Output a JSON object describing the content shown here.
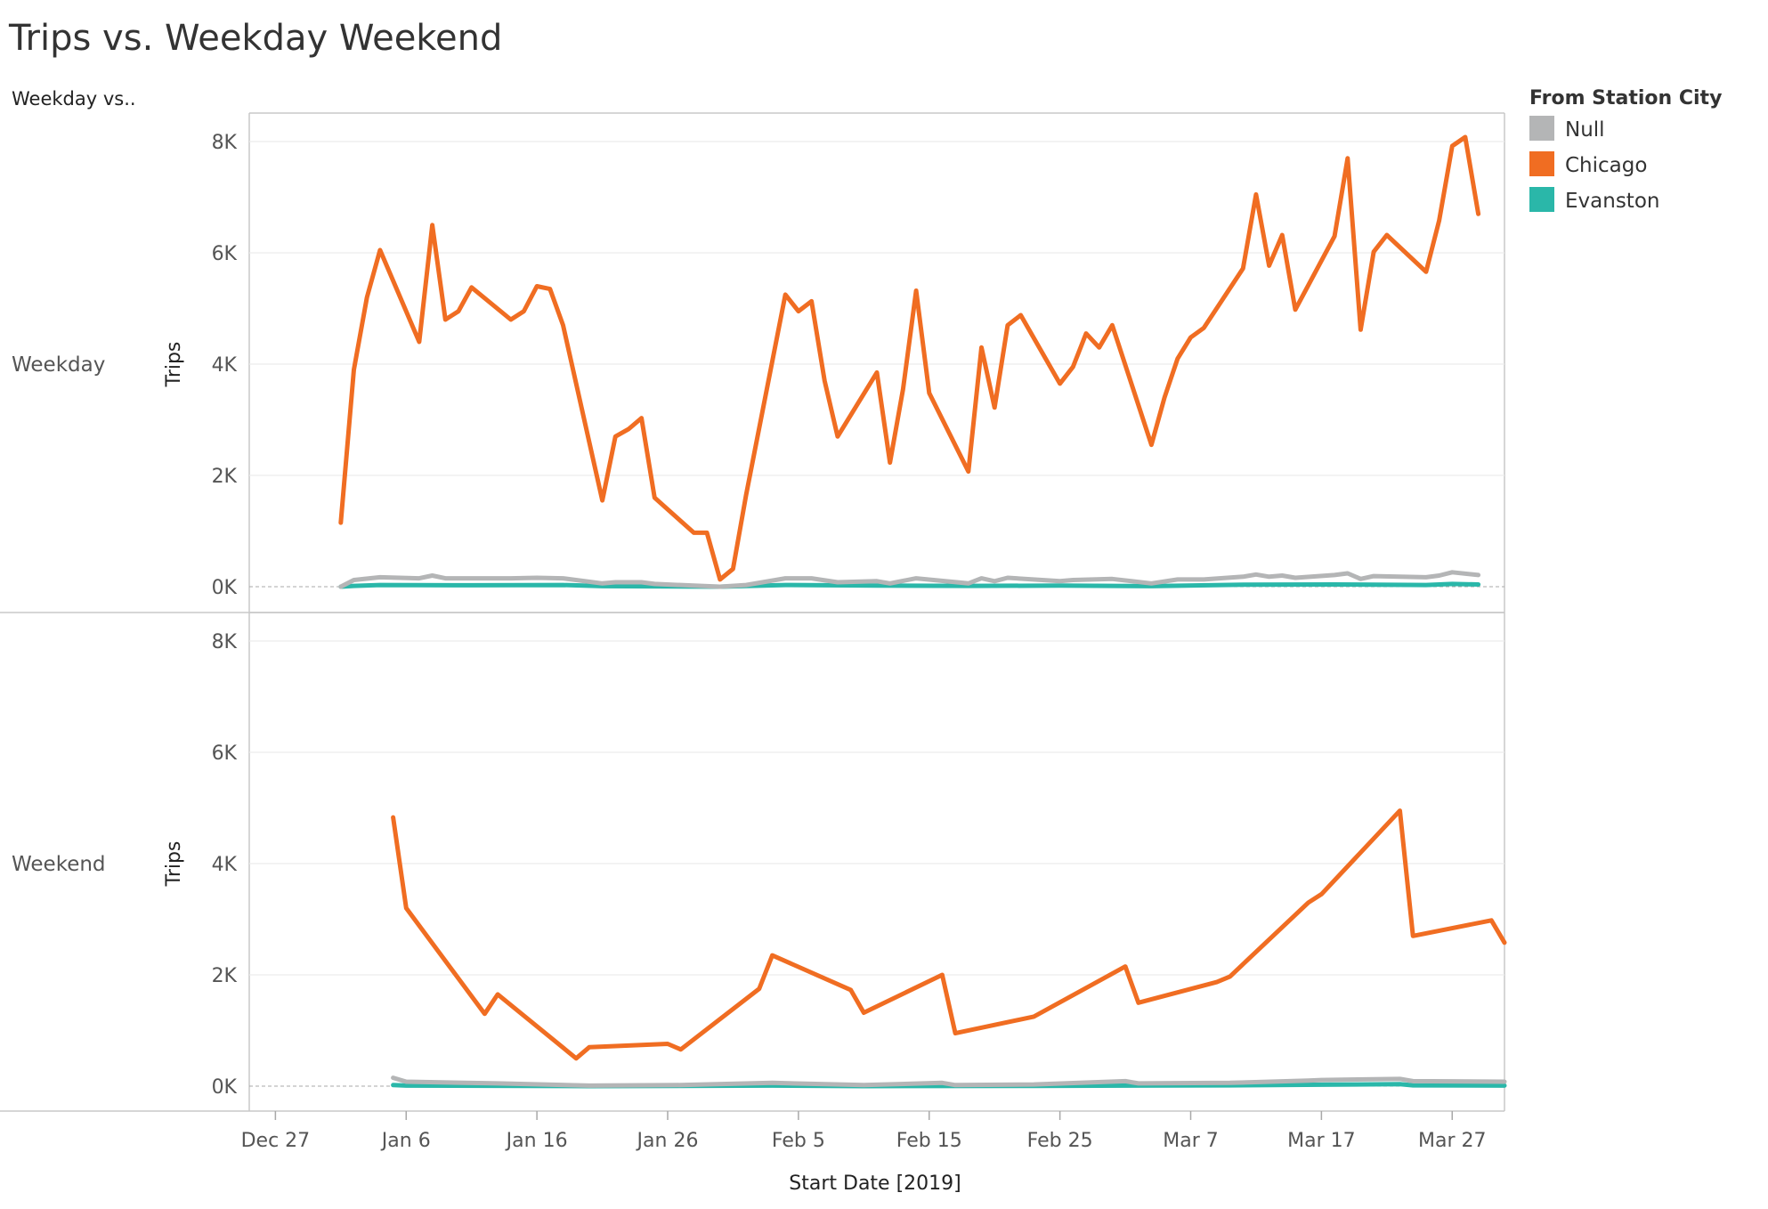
{
  "title": "Trips vs. Weekday Weekend",
  "row_header": "Weekday vs..",
  "legend": {
    "title": "From Station City",
    "items": [
      {
        "label": "Null",
        "color": "#b4b5b6"
      },
      {
        "label": "Chicago",
        "color": "#f06d22"
      },
      {
        "label": "Evanston",
        "color": "#2ab7a9"
      }
    ]
  },
  "x_axis": {
    "title": "Start Date [2019]",
    "ticks": [
      "Dec 27",
      "Jan 6",
      "Jan 16",
      "Jan 26",
      "Feb 5",
      "Feb 15",
      "Feb 25",
      "Mar 7",
      "Mar 17",
      "Mar 27"
    ]
  },
  "chart_data": {
    "type": "line",
    "x_is_date": true,
    "xlim": [
      "2018-12-25",
      "2019-03-31"
    ],
    "ylim": [
      0,
      8500
    ],
    "y_ticks": [
      "0K",
      "2K",
      "4K",
      "6K",
      "8K"
    ],
    "y_tick_values": [
      0,
      2000,
      4000,
      6000,
      8000
    ],
    "ylabel": "Trips",
    "xlabel": "Start Date [2019]",
    "grid": true,
    "legend_position": "right",
    "panels": [
      {
        "label": "Weekday",
        "series": [
          {
            "name": "Chicago",
            "color": "#f06d22",
            "points": [
              [
                "2019-01-01",
                1150
              ],
              [
                "2019-01-02",
                3900
              ],
              [
                "2019-01-03",
                5200
              ],
              [
                "2019-01-04",
                6050
              ],
              [
                "2019-01-07",
                4400
              ],
              [
                "2019-01-08",
                6500
              ],
              [
                "2019-01-09",
                4800
              ],
              [
                "2019-01-10",
                4950
              ],
              [
                "2019-01-11",
                5380
              ],
              [
                "2019-01-14",
                4800
              ],
              [
                "2019-01-15",
                4950
              ],
              [
                "2019-01-16",
                5400
              ],
              [
                "2019-01-17",
                5350
              ],
              [
                "2019-01-18",
                4700
              ],
              [
                "2019-01-21",
                1550
              ],
              [
                "2019-01-22",
                2700
              ],
              [
                "2019-01-23",
                2830
              ],
              [
                "2019-01-24",
                3030
              ],
              [
                "2019-01-25",
                1600
              ],
              [
                "2019-01-28",
                970
              ],
              [
                "2019-01-29",
                970
              ],
              [
                "2019-01-30",
                130
              ],
              [
                "2019-01-31",
                320
              ],
              [
                "2019-02-01",
                1650
              ],
              [
                "2019-02-04",
                5250
              ],
              [
                "2019-02-05",
                4950
              ],
              [
                "2019-02-06",
                5130
              ],
              [
                "2019-02-07",
                3700
              ],
              [
                "2019-02-08",
                2700
              ],
              [
                "2019-02-11",
                3850
              ],
              [
                "2019-02-12",
                2230
              ],
              [
                "2019-02-13",
                3550
              ],
              [
                "2019-02-14",
                5320
              ],
              [
                "2019-02-15",
                3480
              ],
              [
                "2019-02-18",
                2070
              ],
              [
                "2019-02-19",
                4300
              ],
              [
                "2019-02-20",
                3220
              ],
              [
                "2019-02-21",
                4700
              ],
              [
                "2019-02-22",
                4880
              ],
              [
                "2019-02-25",
                3650
              ],
              [
                "2019-02-26",
                3950
              ],
              [
                "2019-02-27",
                4550
              ],
              [
                "2019-02-28",
                4300
              ],
              [
                "2019-03-01",
                4700
              ],
              [
                "2019-03-04",
                2550
              ],
              [
                "2019-03-05",
                3400
              ],
              [
                "2019-03-06",
                4100
              ],
              [
                "2019-03-07",
                4480
              ],
              [
                "2019-03-08",
                4650
              ],
              [
                "2019-03-11",
                5720
              ],
              [
                "2019-03-12",
                7050
              ],
              [
                "2019-03-13",
                5770
              ],
              [
                "2019-03-14",
                6320
              ],
              [
                "2019-03-15",
                4980
              ],
              [
                "2019-03-18",
                6300
              ],
              [
                "2019-03-19",
                7700
              ],
              [
                "2019-03-20",
                4620
              ],
              [
                "2019-03-21",
                6020
              ],
              [
                "2019-03-22",
                6320
              ],
              [
                "2019-03-25",
                5660
              ],
              [
                "2019-03-26",
                6580
              ],
              [
                "2019-03-27",
                7920
              ],
              [
                "2019-03-28",
                8080
              ],
              [
                "2019-03-29",
                6700
              ]
            ]
          },
          {
            "name": "Null",
            "color": "#b4b5b6",
            "points": [
              [
                "2019-01-01",
                0
              ],
              [
                "2019-01-02",
                120
              ],
              [
                "2019-01-04",
                170
              ],
              [
                "2019-01-07",
                150
              ],
              [
                "2019-01-08",
                200
              ],
              [
                "2019-01-09",
                150
              ],
              [
                "2019-01-14",
                150
              ],
              [
                "2019-01-16",
                160
              ],
              [
                "2019-01-18",
                150
              ],
              [
                "2019-01-21",
                60
              ],
              [
                "2019-01-22",
                80
              ],
              [
                "2019-01-24",
                80
              ],
              [
                "2019-01-25",
                50
              ],
              [
                "2019-01-30",
                0
              ],
              [
                "2019-02-01",
                30
              ],
              [
                "2019-02-04",
                150
              ],
              [
                "2019-02-06",
                150
              ],
              [
                "2019-02-08",
                80
              ],
              [
                "2019-02-11",
                100
              ],
              [
                "2019-02-12",
                60
              ],
              [
                "2019-02-14",
                150
              ],
              [
                "2019-02-18",
                60
              ],
              [
                "2019-02-19",
                150
              ],
              [
                "2019-02-20",
                100
              ],
              [
                "2019-02-21",
                160
              ],
              [
                "2019-02-25",
                100
              ],
              [
                "2019-02-26",
                120
              ],
              [
                "2019-03-01",
                140
              ],
              [
                "2019-03-04",
                60
              ],
              [
                "2019-03-06",
                130
              ],
              [
                "2019-03-08",
                130
              ],
              [
                "2019-03-11",
                180
              ],
              [
                "2019-03-12",
                220
              ],
              [
                "2019-03-13",
                180
              ],
              [
                "2019-03-14",
                200
              ],
              [
                "2019-03-15",
                160
              ],
              [
                "2019-03-18",
                210
              ],
              [
                "2019-03-19",
                240
              ],
              [
                "2019-03-20",
                140
              ],
              [
                "2019-03-21",
                190
              ],
              [
                "2019-03-25",
                170
              ],
              [
                "2019-03-26",
                200
              ],
              [
                "2019-03-27",
                260
              ],
              [
                "2019-03-29",
                210
              ]
            ]
          },
          {
            "name": "Evanston",
            "color": "#2ab7a9",
            "points": [
              [
                "2019-01-01",
                0
              ],
              [
                "2019-01-02",
                15
              ],
              [
                "2019-01-04",
                30
              ],
              [
                "2019-01-11",
                25
              ],
              [
                "2019-01-18",
                30
              ],
              [
                "2019-01-21",
                10
              ],
              [
                "2019-01-30",
                0
              ],
              [
                "2019-02-04",
                30
              ],
              [
                "2019-02-11",
                20
              ],
              [
                "2019-02-18",
                15
              ],
              [
                "2019-02-25",
                20
              ],
              [
                "2019-03-04",
                10
              ],
              [
                "2019-03-11",
                35
              ],
              [
                "2019-03-18",
                40
              ],
              [
                "2019-03-25",
                30
              ],
              [
                "2019-03-27",
                50
              ],
              [
                "2019-03-29",
                40
              ]
            ]
          }
        ]
      },
      {
        "label": "Weekend",
        "series": [
          {
            "name": "Chicago",
            "color": "#f06d22",
            "points": [
              [
                "2019-01-05",
                4830
              ],
              [
                "2019-01-06",
                3200
              ],
              [
                "2019-01-12",
                1300
              ],
              [
                "2019-01-13",
                1650
              ],
              [
                "2019-01-19",
                500
              ],
              [
                "2019-01-20",
                700
              ],
              [
                "2019-01-26",
                760
              ],
              [
                "2019-01-27",
                660
              ],
              [
                "2019-02-02",
                1750
              ],
              [
                "2019-02-03",
                2350
              ],
              [
                "2019-02-09",
                1730
              ],
              [
                "2019-02-10",
                1320
              ],
              [
                "2019-02-16",
                2000
              ],
              [
                "2019-02-17",
                950
              ],
              [
                "2019-02-23",
                1250
              ],
              [
                "2019-03-02",
                2150
              ],
              [
                "2019-03-03",
                1500
              ],
              [
                "2019-03-09",
                1870
              ],
              [
                "2019-03-10",
                1970
              ],
              [
                "2019-03-16",
                3300
              ],
              [
                "2019-03-17",
                3450
              ],
              [
                "2019-03-23",
                4950
              ],
              [
                "2019-03-24",
                2700
              ],
              [
                "2019-03-30",
                2980
              ],
              [
                "2019-03-31",
                2580
              ]
            ]
          },
          {
            "name": "Null",
            "color": "#b4b5b6",
            "points": [
              [
                "2019-01-05",
                150
              ],
              [
                "2019-01-06",
                80
              ],
              [
                "2019-01-13",
                50
              ],
              [
                "2019-01-20",
                10
              ],
              [
                "2019-01-27",
                20
              ],
              [
                "2019-02-03",
                60
              ],
              [
                "2019-02-10",
                20
              ],
              [
                "2019-02-16",
                60
              ],
              [
                "2019-02-17",
                20
              ],
              [
                "2019-02-23",
                30
              ],
              [
                "2019-03-02",
                90
              ],
              [
                "2019-03-03",
                50
              ],
              [
                "2019-03-10",
                60
              ],
              [
                "2019-03-16",
                100
              ],
              [
                "2019-03-17",
                110
              ],
              [
                "2019-03-23",
                130
              ],
              [
                "2019-03-24",
                90
              ],
              [
                "2019-03-31",
                80
              ]
            ]
          },
          {
            "name": "Evanston",
            "color": "#2ab7a9",
            "points": [
              [
                "2019-01-05",
                20
              ],
              [
                "2019-01-06",
                10
              ],
              [
                "2019-01-20",
                0
              ],
              [
                "2019-02-03",
                10
              ],
              [
                "2019-02-10",
                0
              ],
              [
                "2019-02-23",
                5
              ],
              [
                "2019-03-10",
                15
              ],
              [
                "2019-03-17",
                25
              ],
              [
                "2019-03-23",
                35
              ],
              [
                "2019-03-24",
                15
              ],
              [
                "2019-03-31",
                10
              ]
            ]
          }
        ]
      }
    ]
  }
}
